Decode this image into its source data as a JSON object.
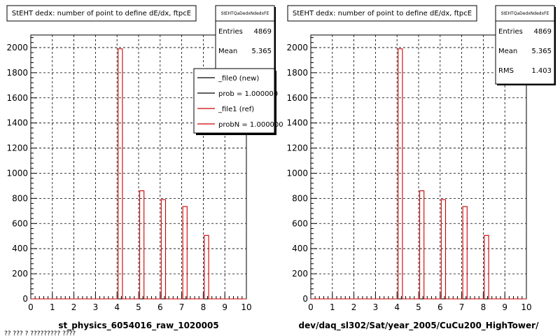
{
  "colors": {
    "hist": "#cc0000",
    "axes": "#000000",
    "grid": "#000000",
    "background": "#ffffff"
  },
  "footer_text": "?? ??? ? ????????? ????",
  "chart_data": [
    {
      "type": "bar",
      "title": "StEHT dedx: number of point to define dE/dx, ftpcE",
      "xlabel": "st_physics_6054016_raw_1020005",
      "ylabel": "",
      "xlim": [
        0,
        10
      ],
      "ylim": [
        0,
        2100
      ],
      "xticks": [
        0,
        1,
        2,
        3,
        4,
        5,
        6,
        7,
        8,
        9,
        10
      ],
      "yticks": [
        0,
        200,
        400,
        600,
        800,
        1000,
        1200,
        1400,
        1600,
        1800,
        2000
      ],
      "grid": true,
      "series": [
        {
          "name": "_file1 (ref)",
          "bins": [
            {
              "x": 4.15,
              "value": 1990
            },
            {
              "x": 5.15,
              "value": 860
            },
            {
              "x": 6.15,
              "value": 790
            },
            {
              "x": 7.15,
              "value": 735
            },
            {
              "x": 8.15,
              "value": 505
            }
          ]
        }
      ],
      "stats": {
        "name": "StEHTQaDedxNdedxFE",
        "rows": [
          {
            "label": "Entries",
            "value": "4869"
          },
          {
            "label": "Mean",
            "value": "5.365"
          }
        ]
      },
      "legend": {
        "placement": "top-right",
        "entries": [
          {
            "label": "_file0 (new)",
            "color": "#000000"
          },
          {
            "label": "prob = 1.000000",
            "color": "#000000"
          },
          {
            "label": "_file1 (ref)",
            "color": "#cc0000"
          },
          {
            "label": "probN = 1.000000",
            "color": "#cc0000"
          }
        ]
      }
    },
    {
      "type": "bar",
      "title": "StEHT dedx: number of point to define dE/dx, ftpcE",
      "xlabel": "dev/daq_sl302/Sat/year_2005/CuCu200_HighTower/",
      "ylabel": "",
      "xlim": [
        0,
        10
      ],
      "ylim": [
        0,
        2100
      ],
      "xticks": [
        0,
        1,
        2,
        3,
        4,
        5,
        6,
        7,
        8,
        9,
        10
      ],
      "yticks": [
        0,
        200,
        400,
        600,
        800,
        1000,
        1200,
        1400,
        1600,
        1800,
        2000
      ],
      "grid": true,
      "series": [
        {
          "bins": [
            {
              "x": 4.15,
              "value": 1990
            },
            {
              "x": 5.15,
              "value": 860
            },
            {
              "x": 6.15,
              "value": 790
            },
            {
              "x": 7.15,
              "value": 735
            },
            {
              "x": 8.15,
              "value": 505
            }
          ]
        }
      ],
      "stats": {
        "name": "StEHTQaDedxNdedxFE",
        "rows": [
          {
            "label": "Entries",
            "value": "4869"
          },
          {
            "label": "Mean",
            "value": "5.365"
          },
          {
            "label": "RMS",
            "value": "1.403"
          }
        ]
      }
    }
  ]
}
